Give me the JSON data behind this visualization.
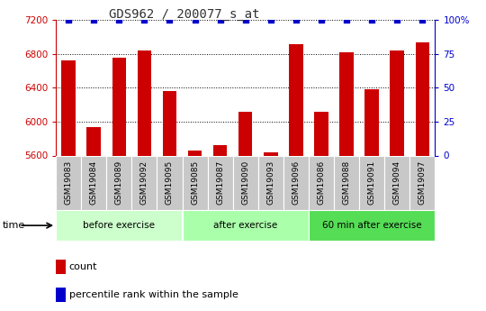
{
  "title": "GDS962 / 200077_s_at",
  "categories": [
    "GSM19083",
    "GSM19084",
    "GSM19089",
    "GSM19092",
    "GSM19095",
    "GSM19085",
    "GSM19087",
    "GSM19090",
    "GSM19093",
    "GSM19096",
    "GSM19086",
    "GSM19088",
    "GSM19091",
    "GSM19094",
    "GSM19097"
  ],
  "values": [
    6720,
    5940,
    6760,
    6840,
    6360,
    5660,
    5720,
    6120,
    5640,
    6920,
    6120,
    6820,
    6380,
    6840,
    6940
  ],
  "percentile_values": [
    100,
    100,
    100,
    100,
    100,
    100,
    100,
    100,
    100,
    100,
    100,
    100,
    100,
    100,
    100
  ],
  "bar_color": "#cc0000",
  "percentile_color": "#0000cc",
  "ylim": [
    5600,
    7200
  ],
  "y_ticks": [
    5600,
    6000,
    6400,
    6800,
    7200
  ],
  "right_ylim": [
    0,
    100
  ],
  "right_yticks": [
    0,
    25,
    50,
    75,
    100
  ],
  "right_yticklabels": [
    "0",
    "25",
    "50",
    "75",
    "100%"
  ],
  "groups": [
    {
      "label": "before exercise",
      "start": 0,
      "end": 5,
      "color": "#ccffcc"
    },
    {
      "label": "after exercise",
      "start": 5,
      "end": 10,
      "color": "#aaffaa"
    },
    {
      "label": "60 min after exercise",
      "start": 10,
      "end": 15,
      "color": "#55dd55"
    }
  ],
  "legend_count_label": "count",
  "legend_pct_label": "percentile rank within the sample",
  "time_label": "time",
  "xlabel_area_bg": "#c8c8c8",
  "grid_color": "#000000",
  "title_color": "#333333",
  "white": "#ffffff"
}
